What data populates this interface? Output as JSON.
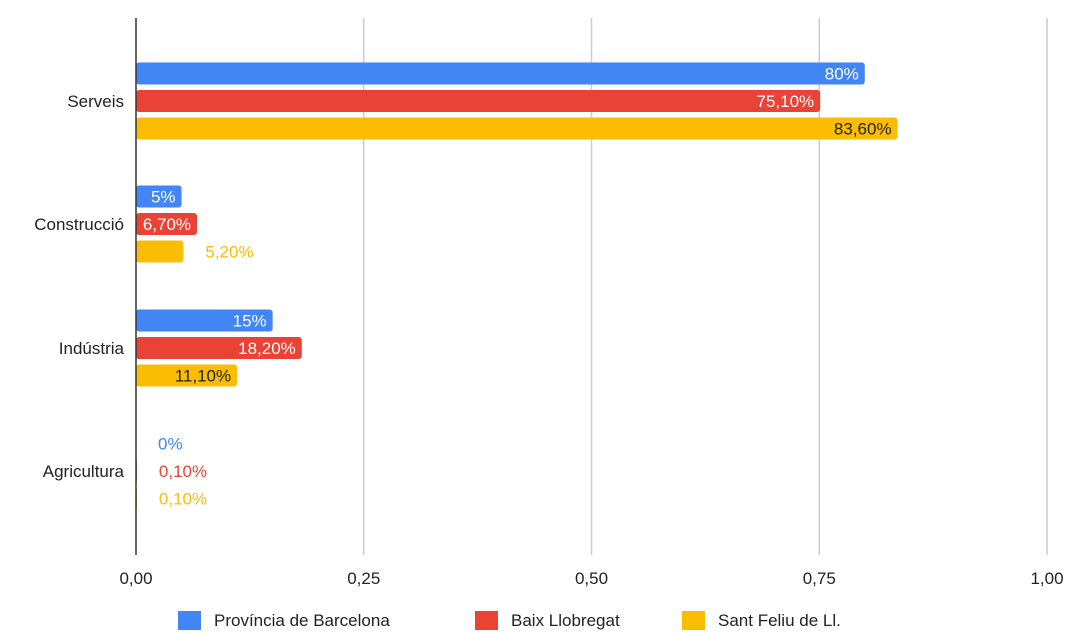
{
  "chart_data": {
    "type": "bar",
    "orientation": "horizontal",
    "categories": [
      "Serveis",
      "Construcció",
      "Indústria",
      "Agricultura"
    ],
    "series": [
      {
        "name": "Província de Barcelona",
        "color": "#4285f4",
        "values": [
          0.8,
          0.05,
          0.15,
          0.0
        ],
        "labels": [
          "80%",
          "5%",
          "15%",
          "0%"
        ]
      },
      {
        "name": "Baix Llobregat",
        "color": "#ea4335",
        "values": [
          0.751,
          0.067,
          0.182,
          0.001
        ],
        "labels": [
          "75,10%",
          "6,70%",
          "18,20%",
          "0,10%"
        ]
      },
      {
        "name": "Sant Feliu de Ll.",
        "color": "#fbbc04",
        "values": [
          0.836,
          0.052,
          0.111,
          0.001
        ],
        "labels": [
          "83,60%",
          "5,20%",
          "11,10%",
          "0,10%"
        ]
      }
    ],
    "xlim": [
      0,
      1
    ],
    "xticks": [
      "0,00",
      "0,25",
      "0,50",
      "0,75",
      "1,00"
    ],
    "grid": true,
    "legend_position": "bottom",
    "title": "",
    "xlabel": "",
    "ylabel": ""
  }
}
